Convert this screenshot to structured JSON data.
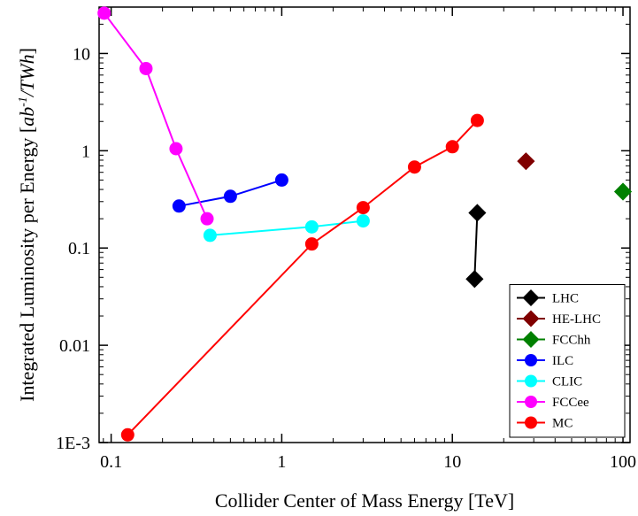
{
  "chart_data": {
    "type": "scatter",
    "xlabel": "Collider Center of Mass Energy [TeV]",
    "ylabel": "Integrated Luminosity per Energy [",
    "ylabel_units": "ab",
    "ylabel_sup": "-1",
    "ylabel_tail": "/TWh",
    "ylabel_end": "]",
    "x_scale": "log",
    "y_scale": "log",
    "xlim": [
      0.085,
      110
    ],
    "ylim": [
      0.001,
      30
    ],
    "x_ticks": [
      {
        "value": 0.1,
        "label": "0.1"
      },
      {
        "value": 1,
        "label": "1"
      },
      {
        "value": 10,
        "label": "10"
      },
      {
        "value": 100,
        "label": "100"
      }
    ],
    "y_ticks": [
      {
        "value": 0.001,
        "label": "1E-3"
      },
      {
        "value": 0.01,
        "label": "0.01"
      },
      {
        "value": 0.1,
        "label": "0.1"
      },
      {
        "value": 1,
        "label": "1"
      },
      {
        "value": 10,
        "label": "10"
      }
    ],
    "grid": false,
    "legend_position": "bottom-right",
    "series": [
      {
        "name": "LHC",
        "color": "#000000",
        "marker": "diamond",
        "line": true,
        "points": [
          [
            13.5,
            0.048
          ],
          [
            14,
            0.23
          ]
        ]
      },
      {
        "name": "HE-LHC",
        "color": "#800000",
        "marker": "diamond",
        "line": false,
        "points": [
          [
            27,
            0.78
          ]
        ]
      },
      {
        "name": "FCChh",
        "color": "#008000",
        "marker": "diamond",
        "line": false,
        "points": [
          [
            100,
            0.38
          ]
        ]
      },
      {
        "name": "ILC",
        "color": "#0000ff",
        "marker": "circle",
        "line": true,
        "points": [
          [
            0.25,
            0.27
          ],
          [
            0.5,
            0.34
          ],
          [
            1,
            0.5
          ]
        ]
      },
      {
        "name": "CLIC",
        "color": "#00ffff",
        "marker": "circle",
        "line": true,
        "points": [
          [
            0.38,
            0.135
          ],
          [
            1.5,
            0.165
          ],
          [
            3,
            0.19
          ]
        ]
      },
      {
        "name": "FCCee",
        "color": "#ff00ff",
        "marker": "circle",
        "line": true,
        "points": [
          [
            0.091,
            26
          ],
          [
            0.16,
            7
          ],
          [
            0.24,
            1.05
          ],
          [
            0.365,
            0.2
          ]
        ]
      },
      {
        "name": "MC",
        "color": "#ff0000",
        "marker": "circle",
        "line": true,
        "points": [
          [
            0.125,
            0.0012
          ],
          [
            1.5,
            0.11
          ],
          [
            3,
            0.26
          ],
          [
            6,
            0.68
          ],
          [
            10,
            1.1
          ],
          [
            14,
            2.05
          ]
        ]
      }
    ]
  }
}
